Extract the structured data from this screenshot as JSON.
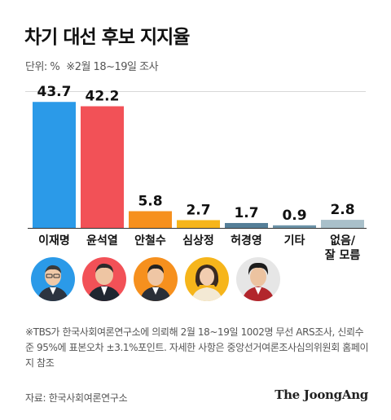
{
  "header": {
    "title": "차기 대선 후보 지지율",
    "unit": "단위: %",
    "survey_note": "※2월 18~19일 조사"
  },
  "chart_data": {
    "type": "bar",
    "title": "차기 대선 후보 지지율",
    "categories": [
      "이재명",
      "윤석열",
      "안철수",
      "심상정",
      "허경영",
      "기타",
      "없음/\n잘 모름"
    ],
    "values": [
      43.7,
      42.2,
      5.8,
      2.7,
      1.7,
      0.9,
      2.8
    ],
    "value_labels": [
      "43.7",
      "42.2",
      "5.8",
      "2.7",
      "1.7",
      "0.9",
      "2.8"
    ],
    "colors": [
      "#2b9ae8",
      "#f25157",
      "#f6901e",
      "#f6b51b",
      "#557f98",
      "#6c93a8",
      "#a9c0ca"
    ],
    "ylim": [
      0,
      48
    ],
    "grid": false
  },
  "photos": [
    {
      "icon": "candidate-photo-lee",
      "bg": "#2b9ae8"
    },
    {
      "icon": "candidate-photo-yoon",
      "bg": "#f25157"
    },
    {
      "icon": "candidate-photo-ahn",
      "bg": "#f6901e"
    },
    {
      "icon": "candidate-photo-sim",
      "bg": "#f6b51b"
    },
    {
      "icon": "candidate-photo-huh",
      "bg": "#dcdcdc"
    }
  ],
  "footnote": "※TBS가 한국사회여론연구소에 의뢰해 2월 18~19일 1002명 무선 ARS조사, 신뢰수준 95%에 표본오차 ±3.1%포인트. 자세한 사항은 중앙선거여론조사심의위원회 홈페이지 참조",
  "source": "자료: 한국사회여론연구소",
  "brand": "The JoongAng"
}
